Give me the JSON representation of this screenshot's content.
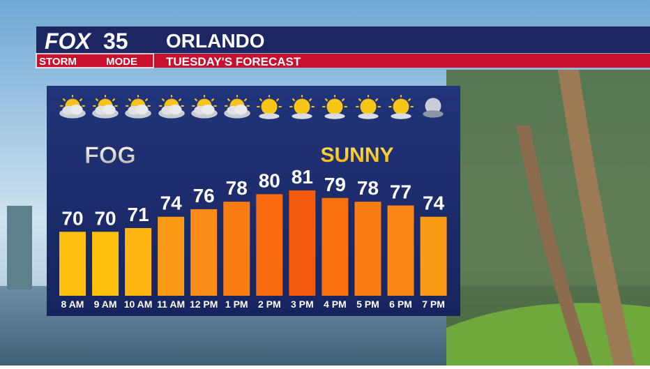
{
  "logo": {
    "brand": "FOX",
    "channel": "35",
    "badge_left": "STORM",
    "badge_right": "MODE"
  },
  "chart_data": {
    "type": "bar",
    "title": "ORLANDO",
    "subtitle": "TUESDAY'S FORECAST",
    "annotations": [
      "FOG",
      "SUNNY"
    ],
    "categories": [
      "8 AM",
      "9 AM",
      "10 AM",
      "11 AM",
      "12 PM",
      "1 PM",
      "2 PM",
      "3 PM",
      "4 PM",
      "5 PM",
      "6 PM",
      "7 PM"
    ],
    "values": [
      70,
      70,
      71,
      74,
      76,
      78,
      80,
      81,
      79,
      78,
      77,
      74
    ],
    "colors": [
      "#fdc00f",
      "#fdc00f",
      "#fdb612",
      "#fb9b15",
      "#fb8c17",
      "#fa7c12",
      "#f86a10",
      "#f45a0a",
      "#f9700f",
      "#fa7c12",
      "#fa8614",
      "#fb9b15"
    ],
    "ylim": [
      53,
      100
    ]
  }
}
